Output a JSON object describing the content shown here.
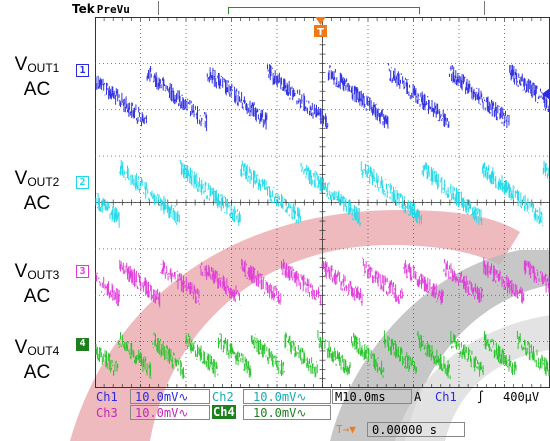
{
  "header": {
    "brand": "Tek",
    "mode": "PreVu"
  },
  "trigger_marker_glyph": "T",
  "channel_labels": [
    {
      "num": "1",
      "name_main": "V",
      "name_sub": "OUT1",
      "coupling": "AC",
      "color": "#2a2ae0"
    },
    {
      "num": "2",
      "name_main": "V",
      "name_sub": "OUT2",
      "coupling": "AC",
      "color": "#1fd8e8"
    },
    {
      "num": "3",
      "name_main": "V",
      "name_sub": "OUT3",
      "coupling": "AC",
      "color": "#de3ad8"
    },
    {
      "num": "4",
      "name_main": "V",
      "name_sub": "OUT4",
      "coupling": "AC",
      "color": "#26c22a"
    }
  ],
  "readout": {
    "ch1_label": "Ch1",
    "ch1_scale": "10.0mV",
    "ch2_label": "Ch2",
    "ch2_scale": "10.0mV",
    "ch3_label": "Ch3",
    "ch3_scale": "10.0mV",
    "ch4_label": "Ch4",
    "ch4_scale": "10.0mV",
    "coupling_symbol": "∿",
    "timebase_prefix": "M",
    "timebase": "10.0ms",
    "acq_mode": "A",
    "trig_source": "Ch1",
    "trig_slope": "∫",
    "trig_level": "400µV",
    "position_symbol": "T→▼",
    "position_value": "0.00000 s"
  },
  "chart_data": {
    "type": "line",
    "x_unit": "ms",
    "x_per_div": 10,
    "x_range": [
      0,
      100
    ],
    "y_per_div_mV": 10,
    "grid": true,
    "series": [
      {
        "channel": "Ch1",
        "color": "#2a2ae0",
        "ramp_period_ms": 13.3,
        "ramp_direction": "falling",
        "amplitude_mV": 11,
        "noise_mV": 4
      },
      {
        "channel": "Ch2",
        "color": "#1fd8e8",
        "ramp_period_ms": 13.3,
        "ramp_direction": "falling",
        "amplitude_mV": 11,
        "noise_mV": 4
      },
      {
        "channel": "Ch3",
        "color": "#de3ad8",
        "ramp_period_ms": 8.9,
        "ramp_direction": "falling",
        "amplitude_mV": 7,
        "noise_mV": 4
      },
      {
        "channel": "Ch4",
        "color": "#26c22a",
        "ramp_period_ms": 7.3,
        "ramp_direction": "falling",
        "amplitude_mV": 7,
        "noise_mV": 4
      }
    ]
  }
}
